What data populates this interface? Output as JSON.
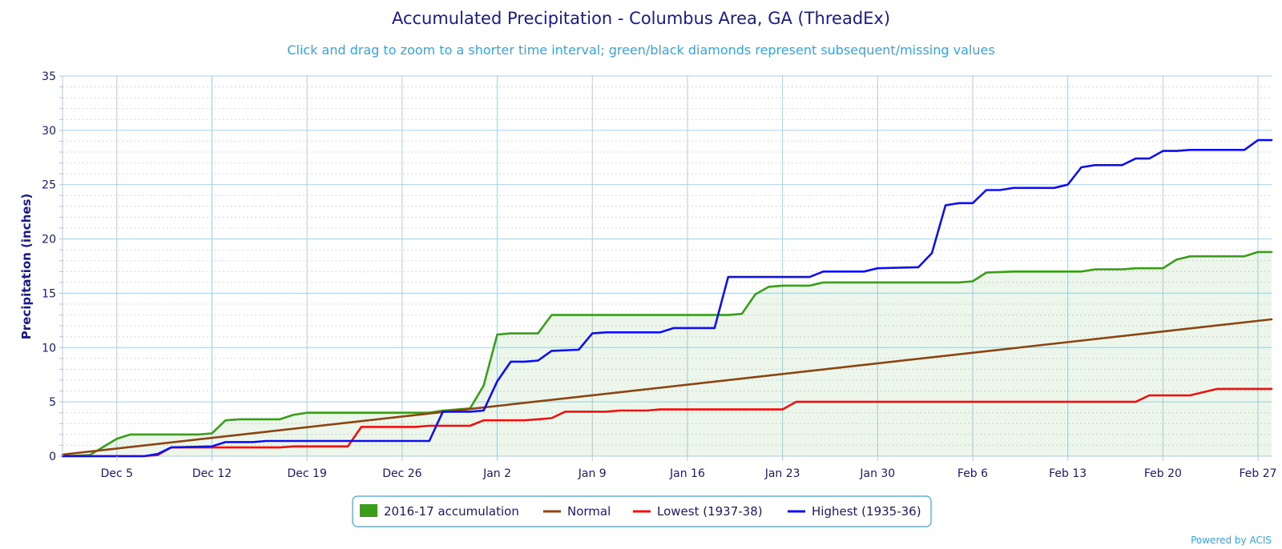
{
  "chart_data": {
    "type": "line",
    "title": "Accumulated Precipitation - Columbus Area, GA (ThreadEx)",
    "subtitle": "Click and drag to zoom to a shorter time interval; green/black diamonds represent subsequent/missing values",
    "ylabel": "Precipitation (inches)",
    "xlabel": "",
    "ylim": [
      0,
      35
    ],
    "yticks": [
      0,
      5,
      10,
      15,
      20,
      25,
      30,
      35
    ],
    "xrange": [
      "2016-12-01",
      "2017-02-28"
    ],
    "xticks": [
      {
        "date": "2016-12-05",
        "label": "Dec 5"
      },
      {
        "date": "2016-12-12",
        "label": "Dec 12"
      },
      {
        "date": "2016-12-19",
        "label": "Dec 19"
      },
      {
        "date": "2016-12-26",
        "label": "Dec 26"
      },
      {
        "date": "2017-01-02",
        "label": "Jan 2"
      },
      {
        "date": "2017-01-09",
        "label": "Jan 9"
      },
      {
        "date": "2017-01-16",
        "label": "Jan 16"
      },
      {
        "date": "2017-01-23",
        "label": "Jan 23"
      },
      {
        "date": "2017-01-30",
        "label": "Jan 30"
      },
      {
        "date": "2017-02-06",
        "label": "Feb 6"
      },
      {
        "date": "2017-02-13",
        "label": "Feb 13"
      },
      {
        "date": "2017-02-20",
        "label": "Feb 20"
      },
      {
        "date": "2017-02-27",
        "label": "Feb 27"
      }
    ],
    "grid": true,
    "legend_position": "bottom-center",
    "series": [
      {
        "name": "2016-17 accumulation",
        "kind": "area",
        "color": "#3a9e1a",
        "points": [
          [
            "2016-12-01",
            0
          ],
          [
            "2016-12-03",
            0.1
          ],
          [
            "2016-12-05",
            1.6
          ],
          [
            "2016-12-06",
            2.0
          ],
          [
            "2016-12-11",
            2.0
          ],
          [
            "2016-12-12",
            2.1
          ],
          [
            "2016-12-13",
            3.3
          ],
          [
            "2016-12-14",
            3.4
          ],
          [
            "2016-12-17",
            3.4
          ],
          [
            "2016-12-18",
            3.8
          ],
          [
            "2016-12-19",
            4.0
          ],
          [
            "2016-12-28",
            4.0
          ],
          [
            "2016-12-29",
            4.2
          ],
          [
            "2016-12-31",
            4.4
          ],
          [
            "2017-01-01",
            6.5
          ],
          [
            "2017-01-02",
            11.2
          ],
          [
            "2017-01-03",
            11.3
          ],
          [
            "2017-01-05",
            11.3
          ],
          [
            "2017-01-06",
            13.0
          ],
          [
            "2017-01-19",
            13.0
          ],
          [
            "2017-01-20",
            13.1
          ],
          [
            "2017-01-21",
            14.9
          ],
          [
            "2017-01-22",
            15.6
          ],
          [
            "2017-01-23",
            15.7
          ],
          [
            "2017-01-25",
            15.7
          ],
          [
            "2017-01-26",
            16.0
          ],
          [
            "2017-02-05",
            16.0
          ],
          [
            "2017-02-06",
            16.1
          ],
          [
            "2017-02-07",
            16.9
          ],
          [
            "2017-02-09",
            17.0
          ],
          [
            "2017-02-14",
            17.0
          ],
          [
            "2017-02-15",
            17.2
          ],
          [
            "2017-02-17",
            17.2
          ],
          [
            "2017-02-18",
            17.3
          ],
          [
            "2017-02-20",
            17.3
          ],
          [
            "2017-02-21",
            18.1
          ],
          [
            "2017-02-22",
            18.4
          ],
          [
            "2017-02-26",
            18.4
          ],
          [
            "2017-02-27",
            18.8
          ],
          [
            "2017-02-28",
            18.8
          ]
        ]
      },
      {
        "name": "Normal",
        "kind": "line",
        "color": "#8b4513",
        "points": [
          [
            "2016-12-01",
            0.15
          ],
          [
            "2017-02-28",
            12.6
          ]
        ]
      },
      {
        "name": "Lowest (1937-38)",
        "kind": "line",
        "color": "#ee1111",
        "points": [
          [
            "2016-12-01",
            0
          ],
          [
            "2016-12-07",
            0
          ],
          [
            "2016-12-08",
            0.1
          ],
          [
            "2016-12-09",
            0.8
          ],
          [
            "2016-12-17",
            0.8
          ],
          [
            "2016-12-18",
            0.9
          ],
          [
            "2016-12-22",
            0.9
          ],
          [
            "2016-12-23",
            2.7
          ],
          [
            "2016-12-27",
            2.7
          ],
          [
            "2016-12-28",
            2.8
          ],
          [
            "2016-12-31",
            2.8
          ],
          [
            "2017-01-01",
            3.3
          ],
          [
            "2017-01-04",
            3.3
          ],
          [
            "2017-01-05",
            3.4
          ],
          [
            "2017-01-06",
            3.5
          ],
          [
            "2017-01-07",
            4.1
          ],
          [
            "2017-01-10",
            4.1
          ],
          [
            "2017-01-11",
            4.2
          ],
          [
            "2017-01-13",
            4.2
          ],
          [
            "2017-01-14",
            4.3
          ],
          [
            "2017-01-23",
            4.3
          ],
          [
            "2017-01-24",
            5.0
          ],
          [
            "2017-02-17",
            5.0
          ],
          [
            "2017-02-18",
            5.0
          ],
          [
            "2017-02-19",
            5.6
          ],
          [
            "2017-02-22",
            5.6
          ],
          [
            "2017-02-24",
            6.2
          ],
          [
            "2017-02-28",
            6.2
          ]
        ]
      },
      {
        "name": "Highest (1935-36)",
        "kind": "line",
        "color": "#1010ee",
        "points": [
          [
            "2016-12-01",
            0
          ],
          [
            "2016-12-07",
            0
          ],
          [
            "2016-12-08",
            0.2
          ],
          [
            "2016-12-09",
            0.8
          ],
          [
            "2016-12-12",
            0.9
          ],
          [
            "2016-12-13",
            1.3
          ],
          [
            "2016-12-15",
            1.3
          ],
          [
            "2016-12-16",
            1.4
          ],
          [
            "2016-12-22",
            1.4
          ],
          [
            "2016-12-27",
            1.4
          ],
          [
            "2016-12-28",
            1.4
          ],
          [
            "2016-12-29",
            4.1
          ],
          [
            "2016-12-31",
            4.1
          ],
          [
            "2017-01-01",
            4.2
          ],
          [
            "2017-01-02",
            6.9
          ],
          [
            "2017-01-03",
            8.7
          ],
          [
            "2017-01-04",
            8.7
          ],
          [
            "2017-01-05",
            8.8
          ],
          [
            "2017-01-06",
            9.7
          ],
          [
            "2017-01-08",
            9.8
          ],
          [
            "2017-01-09",
            11.3
          ],
          [
            "2017-01-10",
            11.4
          ],
          [
            "2017-01-14",
            11.4
          ],
          [
            "2017-01-15",
            11.8
          ],
          [
            "2017-01-18",
            11.8
          ],
          [
            "2017-01-19",
            16.5
          ],
          [
            "2017-01-25",
            16.5
          ],
          [
            "2017-01-26",
            17.0
          ],
          [
            "2017-01-29",
            17.0
          ],
          [
            "2017-01-30",
            17.3
          ],
          [
            "2017-02-02",
            17.4
          ],
          [
            "2017-02-03",
            18.7
          ],
          [
            "2017-02-04",
            23.1
          ],
          [
            "2017-02-05",
            23.3
          ],
          [
            "2017-02-06",
            23.3
          ],
          [
            "2017-02-07",
            24.5
          ],
          [
            "2017-02-08",
            24.5
          ],
          [
            "2017-02-09",
            24.7
          ],
          [
            "2017-02-12",
            24.7
          ],
          [
            "2017-02-13",
            25.0
          ],
          [
            "2017-02-14",
            26.6
          ],
          [
            "2017-02-15",
            26.8
          ],
          [
            "2017-02-17",
            26.8
          ],
          [
            "2017-02-18",
            27.4
          ],
          [
            "2017-02-19",
            27.4
          ],
          [
            "2017-02-20",
            28.1
          ],
          [
            "2017-02-21",
            28.1
          ],
          [
            "2017-02-22",
            28.2
          ],
          [
            "2017-02-26",
            28.2
          ],
          [
            "2017-02-27",
            29.1
          ],
          [
            "2017-02-28",
            29.1
          ]
        ]
      }
    ],
    "credit": "Powered by ACIS"
  }
}
